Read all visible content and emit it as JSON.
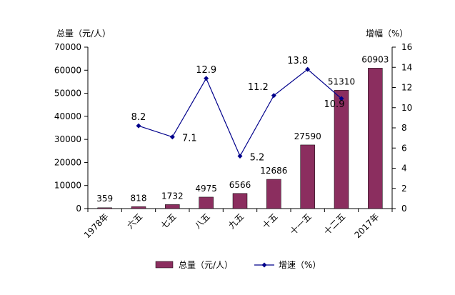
{
  "chart_data": {
    "type": "bar",
    "categories": [
      "1978年",
      "六五",
      "七五",
      "八五",
      "九五",
      "十五",
      "十一五",
      "十二五",
      "2017年"
    ],
    "series": [
      {
        "name": "总量（元/人）",
        "type": "bar",
        "axis": "left",
        "color": "#8B2E5F",
        "values": [
          359,
          818,
          1732,
          4975,
          6566,
          12686,
          27590,
          51310,
          60903
        ],
        "labels": [
          "359",
          "818",
          "1732",
          "4975",
          "6566",
          "12686",
          "27590",
          "51310",
          "60903"
        ]
      },
      {
        "name": "增速（%）",
        "type": "line",
        "axis": "right",
        "color": "#00008B",
        "values": [
          null,
          8.2,
          7.1,
          12.9,
          5.2,
          11.2,
          13.8,
          10.9,
          null
        ],
        "labels": [
          "",
          "8.2",
          "7.1",
          "12.9",
          "5.2",
          "11.2",
          "13.8",
          "10.9",
          ""
        ]
      }
    ],
    "y_left": {
      "title": "总量（元/人）",
      "range": [
        0,
        70000
      ],
      "ticks": [
        0,
        10000,
        20000,
        30000,
        40000,
        50000,
        60000,
        70000
      ]
    },
    "y_right": {
      "title": "增幅（%）",
      "range": [
        0,
        16
      ],
      "ticks": [
        0,
        2,
        4,
        6,
        8,
        10,
        12,
        14,
        16
      ]
    },
    "grid": false,
    "legend_position": "bottom"
  }
}
